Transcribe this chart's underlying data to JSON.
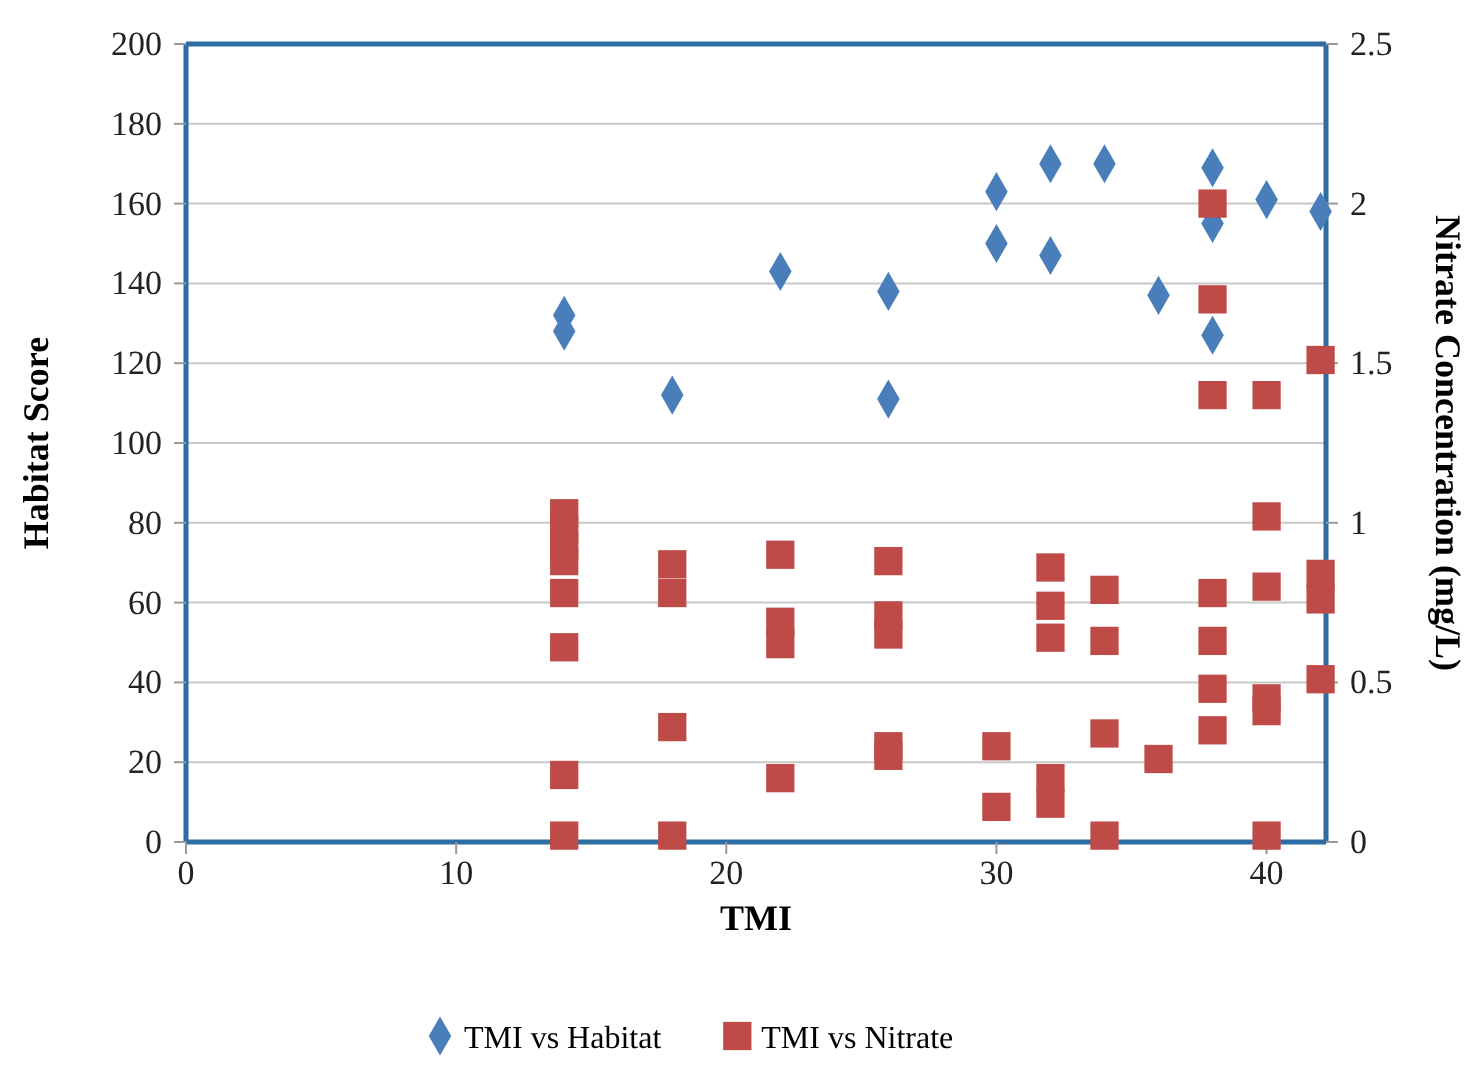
{
  "chart_data": {
    "type": "scatter",
    "xlabel": "TMI",
    "ylabel": "Habitat Score",
    "y2label": "Nitrate Concentration (mg/L)",
    "xlim": [
      0,
      42.2
    ],
    "xticks": [
      0,
      10,
      20,
      30,
      40
    ],
    "ylim": [
      0,
      200
    ],
    "yticks": [
      0,
      20,
      40,
      60,
      80,
      100,
      120,
      140,
      160,
      180,
      200
    ],
    "y2lim": [
      0,
      2.5
    ],
    "y2ticks": [
      0,
      0.5,
      1,
      1.5,
      2,
      2.5
    ],
    "grid": "y",
    "legend": "bottom",
    "series": [
      {
        "name": "TMI vs Habitat",
        "color": "#4a7ebb",
        "marker": "diamond",
        "x": [
          14,
          14,
          18,
          22,
          26,
          26,
          30,
          30,
          32,
          32,
          34,
          36,
          38,
          38,
          38,
          40,
          42
        ],
        "values": [
          132,
          128,
          112,
          143,
          138,
          111,
          163,
          150,
          170,
          147,
          170,
          137,
          169,
          155,
          127,
          161,
          158
        ]
      },
      {
        "name": "TMI vs Nitrate",
        "color": "#be4b48",
        "marker": "square",
        "axis": "y2",
        "x": [
          14,
          14,
          14,
          14,
          14,
          14,
          14,
          14,
          18,
          18,
          18,
          18,
          22,
          22,
          22,
          22,
          26,
          26,
          26,
          26,
          26,
          30,
          30,
          32,
          32,
          32,
          32,
          32,
          34,
          34,
          34,
          34,
          36,
          38,
          38,
          38,
          38,
          38,
          38,
          38,
          40,
          40,
          40,
          40,
          40,
          40,
          42,
          42,
          42,
          42
        ],
        "values": [
          1.03,
          0.98,
          0.93,
          0.88,
          0.78,
          0.61,
          0.21,
          0.02,
          0.87,
          0.78,
          0.36,
          0.02,
          0.9,
          0.69,
          0.62,
          0.2,
          0.88,
          0.71,
          0.65,
          0.3,
          0.27,
          0.3,
          0.11,
          0.86,
          0.74,
          0.64,
          0.2,
          0.12,
          0.79,
          0.63,
          0.34,
          0.02,
          0.26,
          2.0,
          1.7,
          1.4,
          0.78,
          0.63,
          0.48,
          0.35,
          1.4,
          1.02,
          0.8,
          0.45,
          0.41,
          0.02,
          1.51,
          0.84,
          0.76,
          0.51
        ]
      }
    ]
  }
}
